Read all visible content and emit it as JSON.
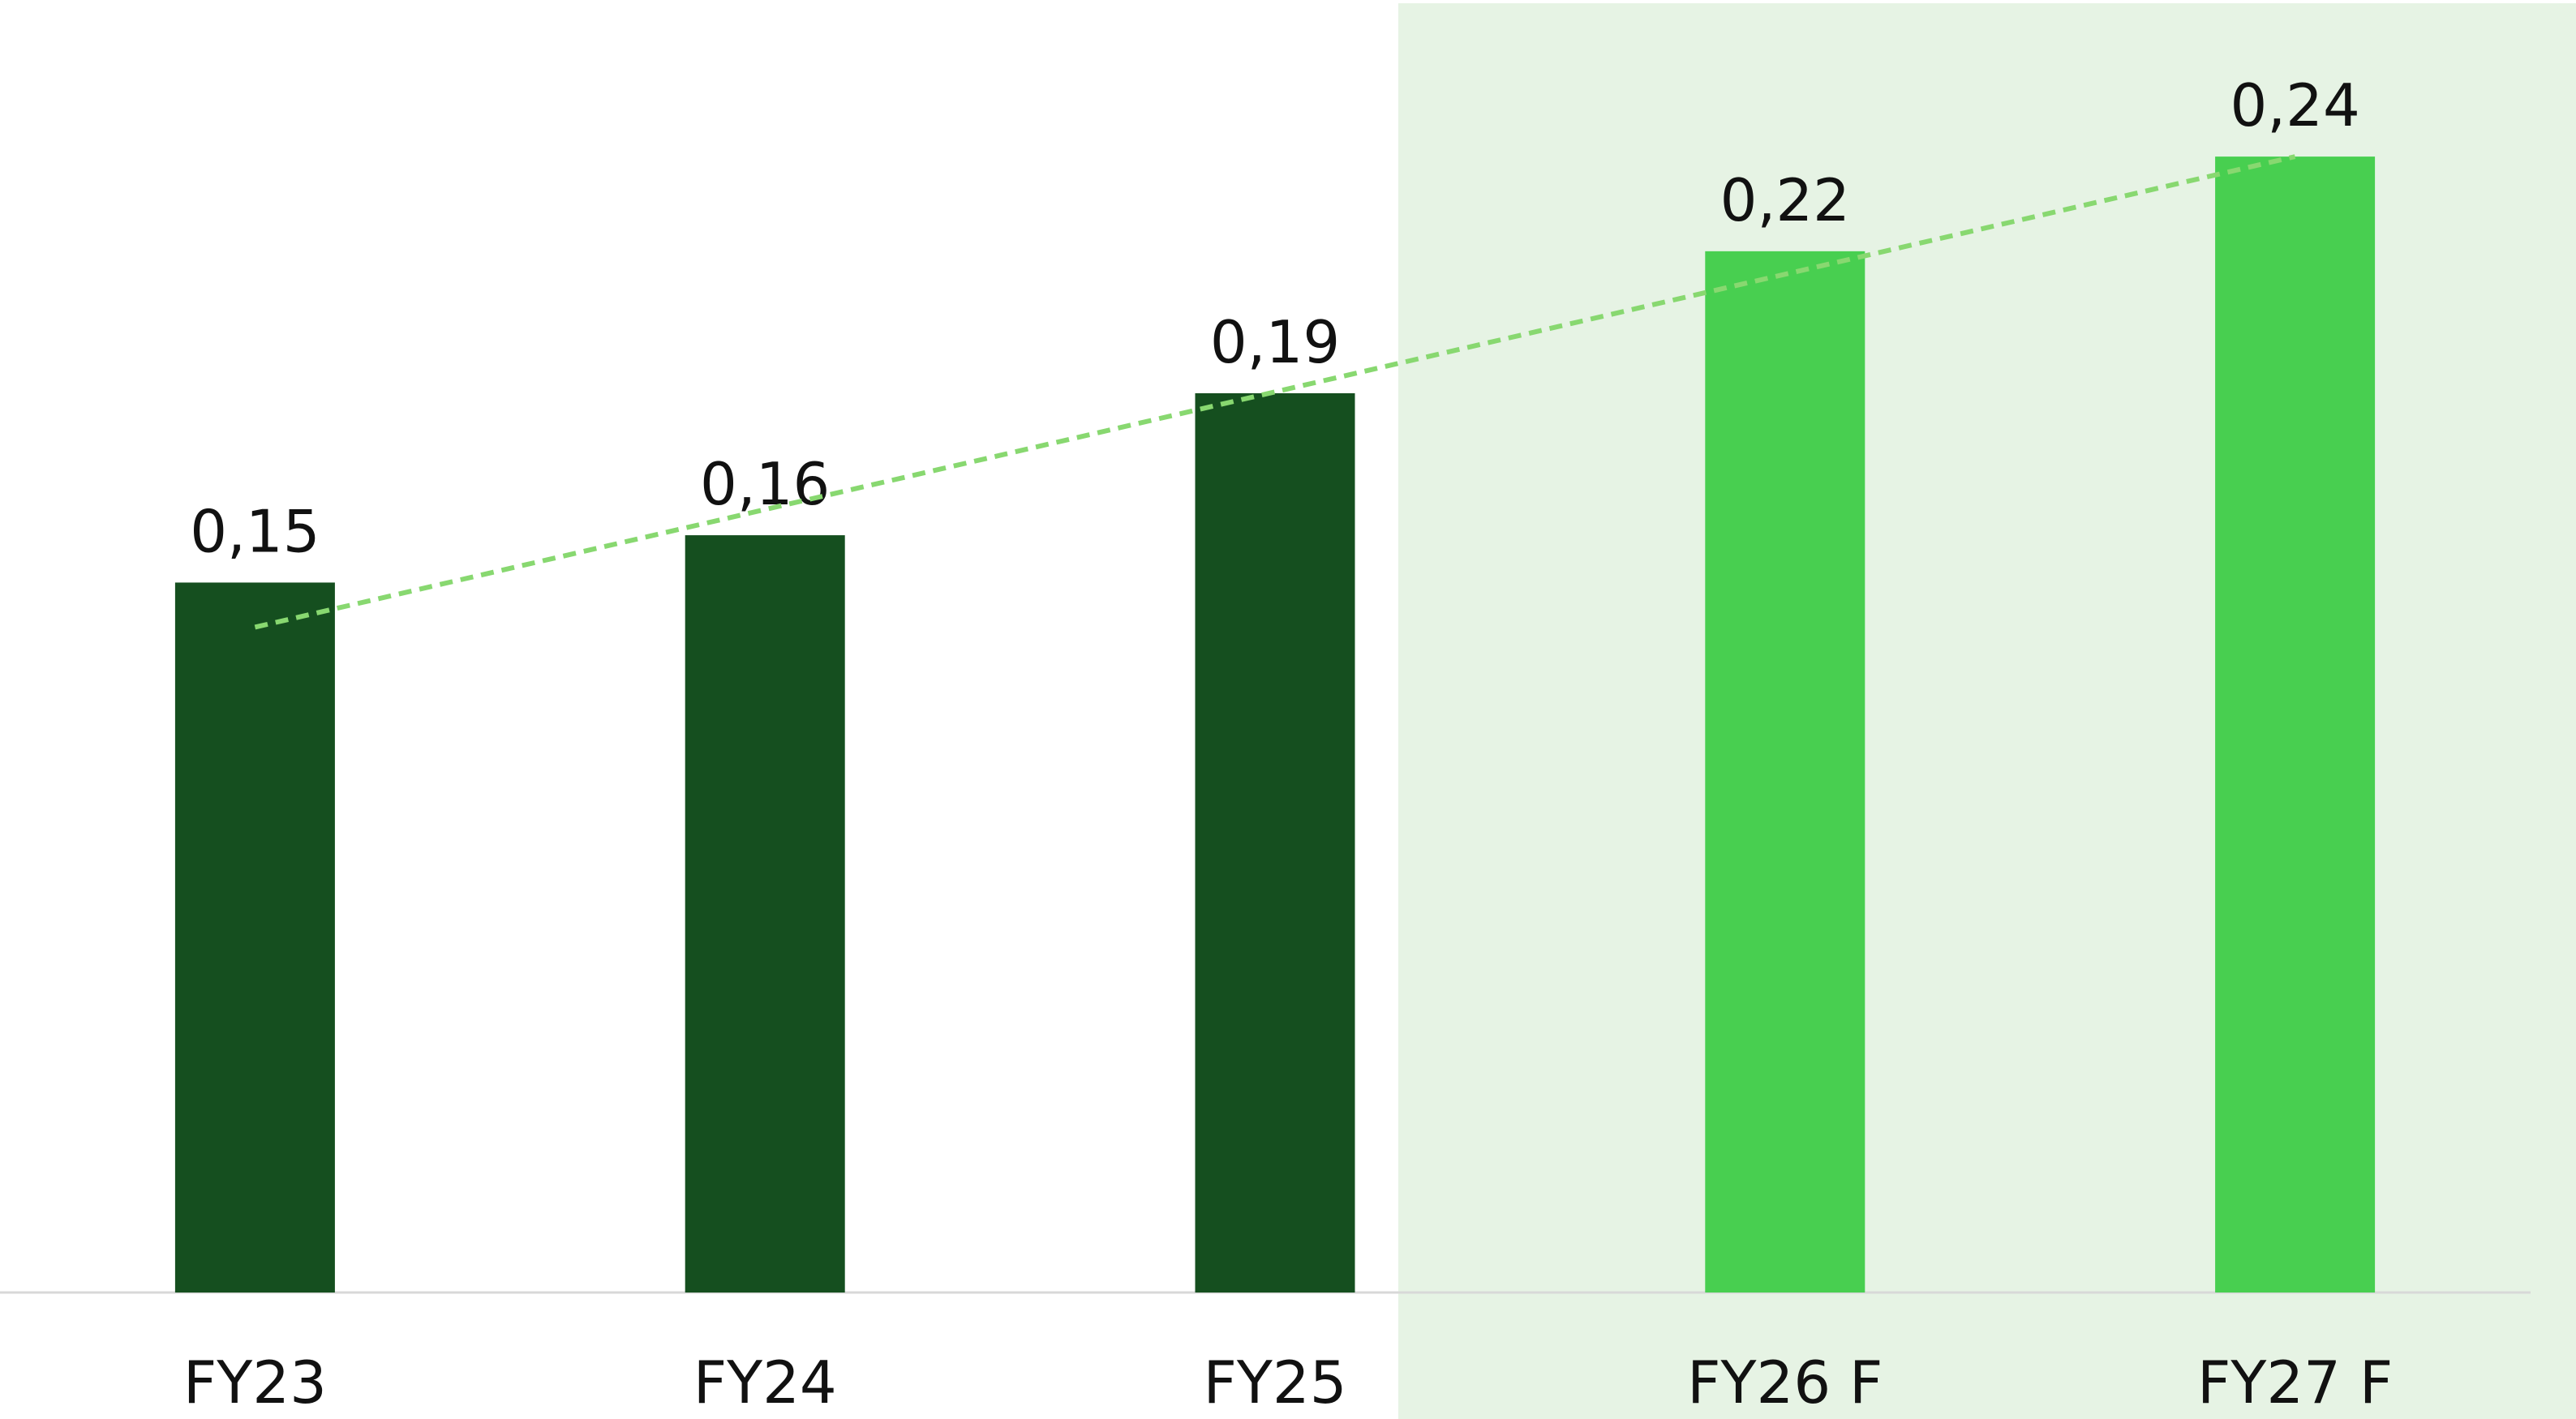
{
  "chart_data": {
    "type": "bar",
    "categories": [
      "FY23",
      "FY24",
      "FY25",
      "FY26 F",
      "FY27  F"
    ],
    "values": [
      0.15,
      0.16,
      0.19,
      0.22,
      0.24
    ],
    "value_labels": [
      "0,15",
      "0,16",
      "0,19",
      "0,22",
      "0,24"
    ],
    "colors": [
      "#154f1f",
      "#154f1f",
      "#154f1f",
      "#48cf50",
      "#48cf50"
    ],
    "ylim": [
      0,
      0.27
    ],
    "trendline": "linear",
    "trendline_color": "#88d870"
  }
}
